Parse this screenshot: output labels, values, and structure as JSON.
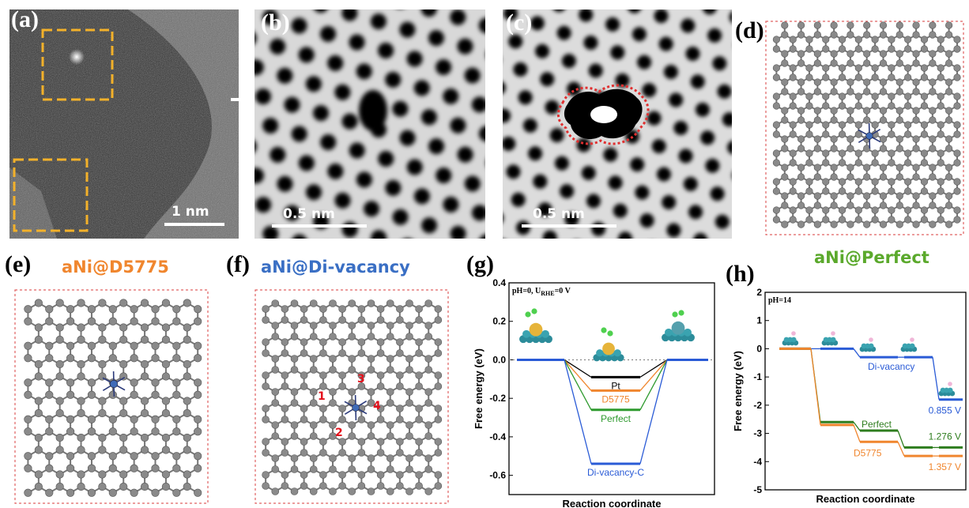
{
  "labels": {
    "a": "(a)",
    "b": "(b)",
    "c": "(c)",
    "d": "(d)",
    "e": "(e)",
    "f": "(f)",
    "g": "(g)",
    "h": "(h)"
  },
  "scale_bars": {
    "a": "1 nm",
    "b": "0.5 nm",
    "c": "0.5 nm"
  },
  "titles": {
    "e": "aNi@D5775",
    "f": "aNi@Di-vacancy",
    "h": "aNi@Perfect"
  },
  "site_numbers": [
    "1",
    "2",
    "3",
    "4"
  ],
  "colors": {
    "orange": "#f0862e",
    "blue": "#3a6fc4",
    "green": "#5ba92c",
    "red_dash": "#e03030",
    "yellow_dash": "#f3b12a"
  },
  "chart_data": [
    {
      "type": "line",
      "panel": "g",
      "ylabel": "Free energy (eV)",
      "xlabel": "Reaction coordinate",
      "condition": "pH=0, U",
      "condition_sub": "RHE",
      "condition_tail": "=0 V",
      "ylim": [
        -0.7,
        0.4
      ],
      "yticks": [
        "0.4",
        "0.2",
        "0.0",
        "-0.2",
        "-0.4",
        "-0.6"
      ],
      "series": [
        {
          "name": "Pt",
          "color": "#000000",
          "values": [
            0,
            -0.09,
            0
          ]
        },
        {
          "name": "D5775",
          "color": "#f0862e",
          "values": [
            0,
            -0.16,
            0
          ]
        },
        {
          "name": "Perfect",
          "color": "#2e9a2e",
          "values": [
            0,
            -0.26,
            0
          ]
        },
        {
          "name": "Di-vacancy-C",
          "color": "#2a5bd6",
          "values": [
            0,
            -0.54,
            0
          ]
        }
      ]
    },
    {
      "type": "line",
      "panel": "h",
      "ylabel": "Free energy (eV)",
      "xlabel": "Reaction coordinate",
      "condition": "pH=14",
      "ylim": [
        -5,
        2
      ],
      "yticks": [
        "2",
        "1",
        "0",
        "-1",
        "-2",
        "-3",
        "-4",
        "-5"
      ],
      "series": [
        {
          "name": "Di-vacancy",
          "color": "#2a5bd6",
          "values": [
            0,
            0,
            -0.3,
            -0.3,
            -1.8
          ],
          "annotation": "0.855 V"
        },
        {
          "name": "Perfect",
          "color": "#2e7d1e",
          "values": [
            0,
            -2.6,
            -2.9,
            -3.5,
            -3.5
          ],
          "annotation": "1.276 V"
        },
        {
          "name": "D5775",
          "color": "#f0862e",
          "values": [
            0,
            -2.7,
            -3.3,
            -3.8,
            -3.8
          ],
          "annotation": "1.357 V"
        }
      ]
    }
  ]
}
